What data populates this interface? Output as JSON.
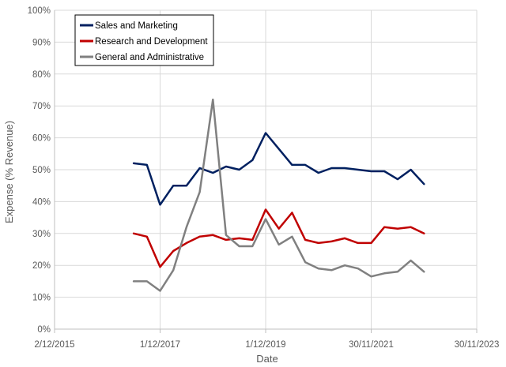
{
  "chart_data": {
    "type": "line",
    "title": "",
    "xlabel": "Date",
    "ylabel": "Expense (% Revenue)",
    "ylim": [
      0,
      100
    ],
    "yticks": [
      0,
      10,
      20,
      30,
      40,
      50,
      60,
      70,
      80,
      90,
      100
    ],
    "ytick_labels": [
      "0%",
      "10%",
      "20%",
      "30%",
      "40%",
      "50%",
      "60%",
      "70%",
      "80%",
      "90%",
      "100%"
    ],
    "xlim": [
      2015.92,
      2023.92
    ],
    "xticks": [
      2015.92,
      2017.92,
      2019.92,
      2021.92,
      2023.92
    ],
    "xtick_labels": [
      "2/12/2015",
      "1/12/2017",
      "1/12/2019",
      "30/11/2021",
      "30/11/2023"
    ],
    "grid": true,
    "legend": "top-left",
    "x": [
      2017.42,
      2017.67,
      2017.92,
      2018.17,
      2018.42,
      2018.67,
      2018.92,
      2019.17,
      2019.42,
      2019.67,
      2019.92,
      2020.17,
      2020.42,
      2020.67,
      2020.92,
      2021.17,
      2021.42,
      2021.67,
      2021.92,
      2022.17,
      2022.42,
      2022.67,
      2022.92
    ],
    "series": [
      {
        "name": "Sales and Marketing",
        "color": "#002060",
        "values": [
          52,
          51.5,
          39,
          45,
          45,
          50.5,
          49,
          51,
          50,
          53,
          61.5,
          56.5,
          51.5,
          51.5,
          49,
          50.5,
          50.5,
          50,
          49.5,
          49.5,
          47,
          50,
          45.5
        ]
      },
      {
        "name": "Research and Development",
        "color": "#c00000",
        "values": [
          30,
          29,
          19.5,
          24.5,
          27,
          29,
          29.5,
          28,
          28.5,
          28,
          37.5,
          31.5,
          36.5,
          28,
          27,
          27.5,
          28.5,
          27,
          27,
          32,
          31.5,
          32,
          30
        ]
      },
      {
        "name": "General and Administrative",
        "color": "#808080",
        "values": [
          15,
          15,
          12,
          18.5,
          32,
          43,
          72,
          29.5,
          26,
          26,
          34.5,
          26.5,
          29,
          21,
          19,
          18.5,
          20,
          19,
          16.5,
          17.5,
          18,
          21.5,
          18
        ]
      }
    ]
  }
}
